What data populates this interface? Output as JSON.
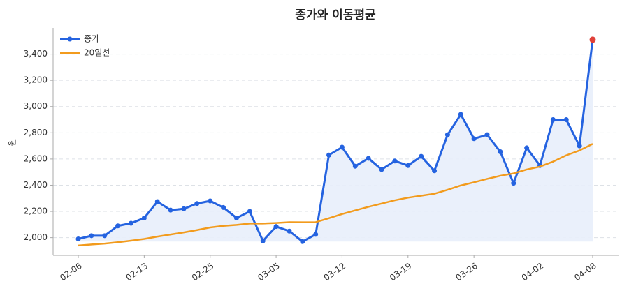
{
  "chart_data": {
    "type": "line",
    "title": "종가와 이동평균",
    "y_label": "원",
    "categories": [
      "02-06",
      null,
      null,
      null,
      null,
      "02-13",
      null,
      null,
      null,
      null,
      "02-25",
      null,
      null,
      null,
      null,
      "03-05",
      null,
      null,
      null,
      null,
      "03-12",
      null,
      null,
      null,
      null,
      "03-19",
      null,
      null,
      null,
      null,
      "03-26",
      null,
      null,
      null,
      null,
      "04-02",
      null,
      null,
      null,
      "04-08"
    ],
    "series": [
      {
        "name": "종가",
        "color": "#2563e0",
        "markers": true,
        "fill": "#e8eefb",
        "values": [
          1990,
          2015,
          2015,
          2090,
          2110,
          2150,
          2275,
          2210,
          2220,
          2260,
          2280,
          2230,
          2150,
          2200,
          1975,
          2085,
          2050,
          1970,
          2025,
          2630,
          2690,
          2545,
          2605,
          2520,
          2585,
          2550,
          2620,
          2510,
          2785,
          2940,
          2755,
          2785,
          2655,
          2415,
          2685,
          2550,
          2900,
          2900,
          2700,
          3510
        ]
      },
      {
        "name": "20일선",
        "color": "#f29b1d",
        "markers": false,
        "values": [
          1940,
          1948,
          1955,
          1965,
          1977,
          1990,
          2008,
          2024,
          2040,
          2058,
          2078,
          2090,
          2097,
          2108,
          2108,
          2112,
          2118,
          2117,
          2118,
          2148,
          2180,
          2208,
          2235,
          2260,
          2285,
          2305,
          2320,
          2335,
          2365,
          2398,
          2422,
          2448,
          2472,
          2490,
          2520,
          2542,
          2580,
          2628,
          2665,
          2715
        ]
      }
    ],
    "last_point_color": "#e0413a",
    "ylim": [
      1865,
      3600
    ],
    "yticks": [
      {
        "value": 2000,
        "label": "2,000"
      },
      {
        "value": 2200,
        "label": "2,200"
      },
      {
        "value": 2400,
        "label": "2,400"
      },
      {
        "value": 2600,
        "label": "2,600"
      },
      {
        "value": 2800,
        "label": "2,800"
      },
      {
        "value": 3000,
        "label": "3,000"
      },
      {
        "value": 3200,
        "label": "3,200"
      },
      {
        "value": 3400,
        "label": "3,400"
      }
    ],
    "grid": true,
    "legend": "upper left"
  }
}
